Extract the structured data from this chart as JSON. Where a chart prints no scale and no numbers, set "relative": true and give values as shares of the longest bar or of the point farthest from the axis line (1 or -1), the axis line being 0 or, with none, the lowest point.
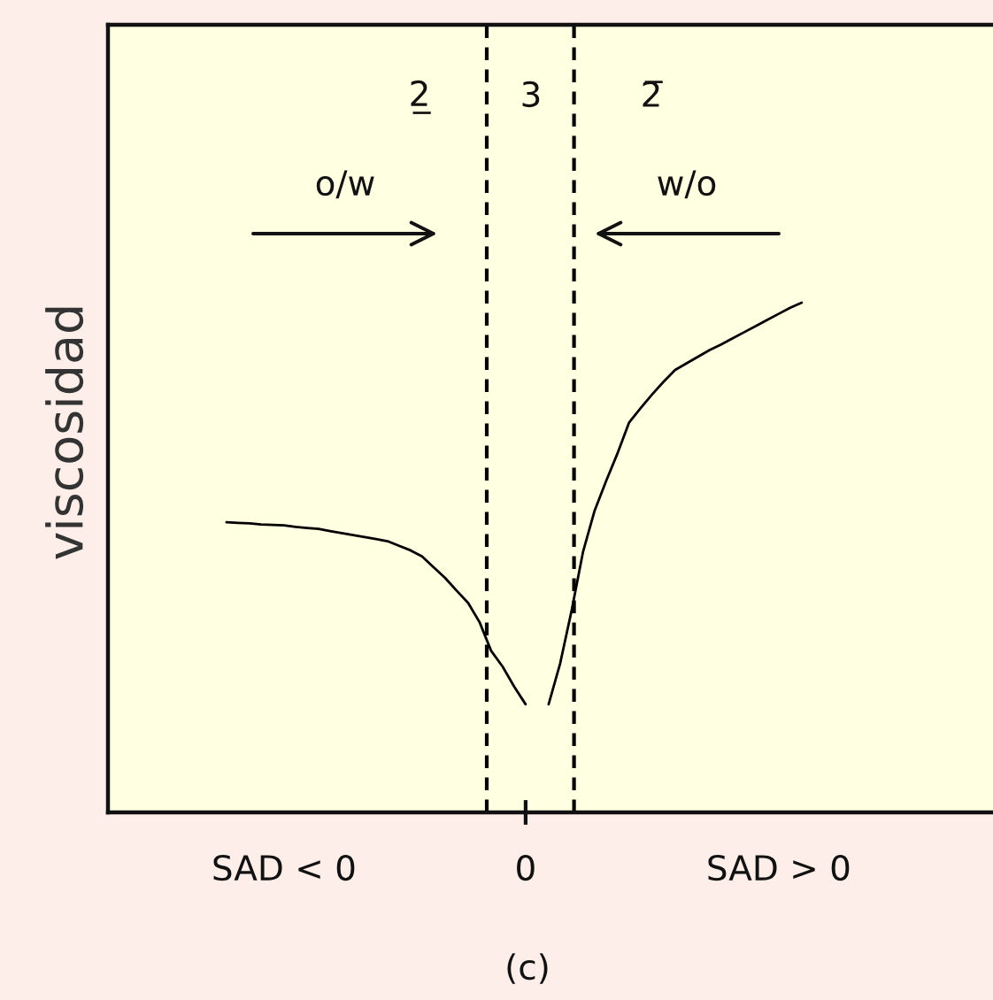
{
  "chart_data": {
    "type": "line",
    "relative": true,
    "ylabel": "viscosidad",
    "categories": [
      null,
      null,
      null,
      null,
      null,
      "SAD < 0",
      null,
      null,
      null,
      null,
      null,
      null,
      null,
      null,
      null,
      null,
      null,
      null,
      null,
      null,
      null,
      null,
      null,
      null,
      null,
      null,
      "0",
      null,
      null,
      null,
      null,
      null,
      null,
      null,
      null,
      null,
      null,
      null,
      null,
      null,
      null,
      null,
      null,
      null,
      null,
      null,
      null,
      null,
      "SAD > 0",
      null,
      null
    ],
    "series": [
      {
        "color": "#000000",
        "values": [
          0.569,
          0.568,
          0.567,
          0.565,
          0.564,
          0.563,
          0.56,
          0.558,
          0.556,
          0.552,
          0.548,
          0.544,
          0.54,
          0.536,
          0.532,
          0.523,
          0.514,
          0.502,
          0.481,
          0.46,
          0.435,
          0.411,
          0.373,
          0.317,
          0.286,
          0.247,
          0.212,
          null,
          0.212,
          0.292,
          0.396,
          0.512,
          0.592,
          0.65,
          0.705,
          0.765,
          0.793,
          0.82,
          0.845,
          0.868,
          0.881,
          0.894,
          0.907,
          0.918,
          0.93,
          0.942,
          0.954,
          0.966,
          0.978,
          0.99,
          1.0
        ]
      }
    ],
    "annotations": [
      "2̲",
      "3",
      "2̅",
      "o/w",
      "w/o",
      "(c)"
    ],
    "line_style": "solid"
  }
}
